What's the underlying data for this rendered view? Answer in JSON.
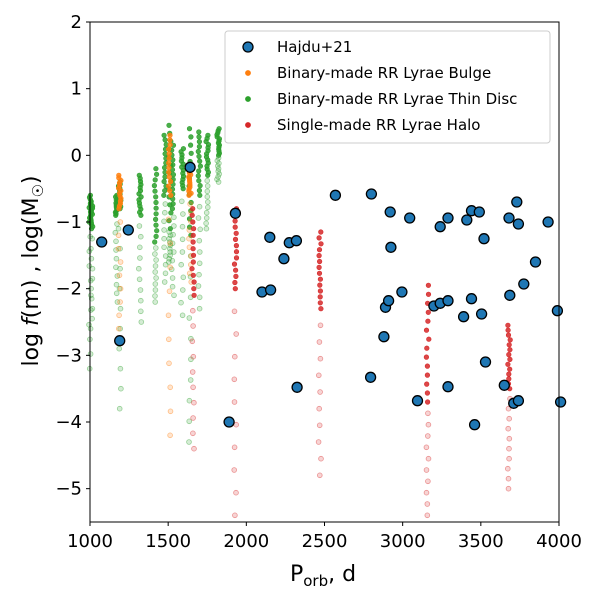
{
  "chart_data": {
    "type": "scatter",
    "xlabel": {
      "main": "P",
      "sub": "orb",
      "rest": ", d"
    },
    "ylabel": {
      "prefix": "log ",
      "func": "f",
      "arg": "(m)",
      "mid": " , log(M",
      "sub": "☉",
      "end": ")"
    },
    "xlim": [
      1000,
      4000
    ],
    "ylim": [
      -5.5,
      2
    ],
    "x_ticks": [
      1000,
      1500,
      2000,
      2500,
      3000,
      3500,
      4000
    ],
    "x_tick_labels": [
      "1000",
      "1500",
      "2000",
      "2500",
      "3000",
      "3500",
      "4000"
    ],
    "y_ticks": [
      2,
      1,
      0,
      -1,
      -2,
      -3,
      -4,
      -5
    ],
    "y_tick_labels": [
      "2",
      "1",
      "0",
      "−1",
      "−2",
      "−3",
      "−4",
      "−5"
    ],
    "legend": [
      {
        "label": "Hajdu+21",
        "color": "#1f77b4",
        "marker": "large"
      },
      {
        "label": "Binary-made RR Lyrae Bulge",
        "color": "#ff7f0e",
        "marker": "small"
      },
      {
        "label": "Binary-made RR Lyrae Thin Disc",
        "color": "#2ca02c",
        "marker": "small"
      },
      {
        "label": "Single-made RR Lyrae Halo",
        "color": "#d62728",
        "marker": "small"
      }
    ],
    "series": [
      {
        "name": "Binary-made RR Lyrae Thin Disc",
        "color": "#2ca02c",
        "columns": [
          {
            "x": 1000,
            "top": -0.6,
            "solid_to": -1.0,
            "faint_to": -3.2
          },
          {
            "x": 1010,
            "top": -0.7,
            "solid_to": -1.1,
            "faint_to": -2.6
          },
          {
            "x": 1170,
            "top": -0.6,
            "solid_to": -0.9,
            "faint_to": -2.2
          },
          {
            "x": 1190,
            "top": -0.4,
            "solid_to": -0.8,
            "faint_to": -3.8
          },
          {
            "x": 1320,
            "top": -0.3,
            "solid_to": -0.9,
            "faint_to": -2.5
          },
          {
            "x": 1420,
            "top": -0.2,
            "solid_to": -1.3,
            "faint_to": -2.2
          },
          {
            "x": 1480,
            "top": 0.3,
            "solid_to": -0.6,
            "faint_to": -1.9
          },
          {
            "x": 1510,
            "top": 0.45,
            "solid_to": -1.1,
            "faint_to": -1.6
          },
          {
            "x": 1530,
            "top": 0.15,
            "solid_to": -0.8,
            "faint_to": -2.1
          },
          {
            "x": 1590,
            "top": 0.1,
            "solid_to": -0.5,
            "faint_to": -2.4
          },
          {
            "x": 1640,
            "top": 0.4,
            "solid_to": -1.2,
            "faint_to": -4.3
          },
          {
            "x": 1700,
            "top": 0.35,
            "solid_to": -0.6,
            "faint_to": -2.3
          },
          {
            "x": 1750,
            "top": 0.3,
            "solid_to": -0.3,
            "faint_to": -1.1
          },
          {
            "x": 1820,
            "top": 0.4,
            "solid_to": 0.0,
            "faint_to": -0.4
          }
        ]
      },
      {
        "name": "Binary-made RR Lyrae Bulge",
        "color": "#ff7f0e",
        "columns": [
          {
            "x": 1190,
            "top": -0.3,
            "solid_to": -0.8,
            "faint_to": -2.8
          },
          {
            "x": 1510,
            "top": 0.3,
            "solid_to": -0.6,
            "faint_to": -4.2
          },
          {
            "x": 1640,
            "top": -0.2,
            "solid_to": -0.6,
            "faint_to": -1.9
          }
        ]
      },
      {
        "name": "Single-made RR Lyrae Halo",
        "color": "#d62728",
        "columns": [
          {
            "x": 1660,
            "top": -0.8,
            "solid_to": -2.1,
            "faint_to": -4.4
          },
          {
            "x": 1930,
            "top": -0.8,
            "solid_to": -2.0,
            "faint_to": -5.4
          },
          {
            "x": 2470,
            "top": -1.15,
            "solid_to": -2.3,
            "faint_to": -4.8
          },
          {
            "x": 3160,
            "top": -1.95,
            "solid_to": -3.7,
            "faint_to": -5.4
          },
          {
            "x": 3680,
            "top": -2.55,
            "solid_to": -3.5,
            "faint_to": -5.0
          }
        ]
      }
    ],
    "hajdu": {
      "name": "Hajdu+21",
      "color": "#1f77b4",
      "points": [
        [
          1075,
          -1.3
        ],
        [
          1190,
          -2.78
        ],
        [
          1245,
          -1.12
        ],
        [
          1640,
          -0.18
        ],
        [
          1890,
          -4.0
        ],
        [
          1930,
          -0.87
        ],
        [
          2100,
          -2.05
        ],
        [
          2150,
          -1.23
        ],
        [
          2155,
          -2.02
        ],
        [
          2240,
          -1.55
        ],
        [
          2275,
          -1.31
        ],
        [
          2320,
          -1.28
        ],
        [
          2325,
          -3.48
        ],
        [
          2570,
          -0.6
        ],
        [
          2795,
          -3.33
        ],
        [
          2800,
          -0.58
        ],
        [
          2880,
          -2.72
        ],
        [
          2890,
          -2.28
        ],
        [
          2910,
          -2.18
        ],
        [
          2920,
          -0.85
        ],
        [
          2925,
          -1.38
        ],
        [
          2995,
          -2.05
        ],
        [
          3045,
          -0.94
        ],
        [
          3095,
          -3.68
        ],
        [
          3200,
          -2.26
        ],
        [
          3240,
          -2.22
        ],
        [
          3240,
          -1.07
        ],
        [
          3290,
          -2.18
        ],
        [
          3290,
          -3.47
        ],
        [
          3290,
          -0.94
        ],
        [
          3390,
          -2.42
        ],
        [
          3410,
          -0.97
        ],
        [
          3440,
          -0.83
        ],
        [
          3440,
          -2.15
        ],
        [
          3460,
          -4.04
        ],
        [
          3490,
          -0.85
        ],
        [
          3505,
          -2.38
        ],
        [
          3520,
          -1.25
        ],
        [
          3530,
          -3.1
        ],
        [
          3650,
          -3.45
        ],
        [
          3680,
          -0.94
        ],
        [
          3685,
          -2.1
        ],
        [
          3710,
          -3.72
        ],
        [
          3730,
          -0.7
        ],
        [
          3740,
          -3.68
        ],
        [
          3740,
          -1.03
        ],
        [
          3775,
          -1.93
        ],
        [
          3850,
          -1.6
        ],
        [
          3930,
          -1.0
        ],
        [
          3990,
          -2.33
        ],
        [
          4010,
          -3.7
        ]
      ]
    }
  }
}
